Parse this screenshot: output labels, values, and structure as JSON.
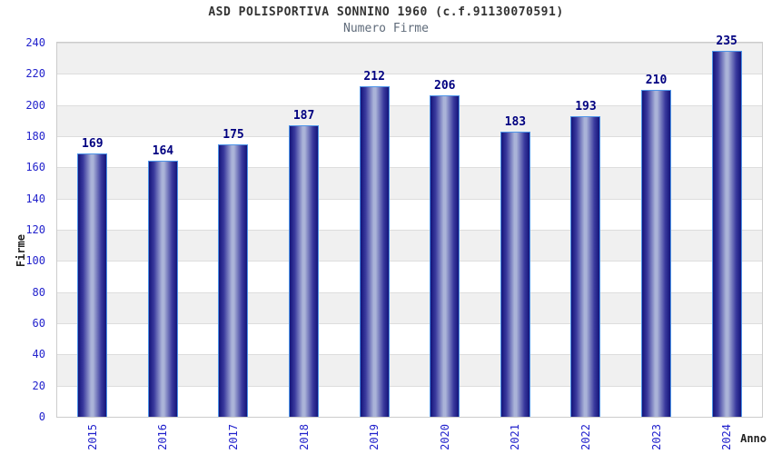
{
  "chart_data": {
    "type": "bar",
    "title": "ASD POLISPORTIVA SONNINO 1960 (c.f.91130070591)",
    "subtitle": "Numero Firme",
    "categories": [
      "2015",
      "2016",
      "2017",
      "2018",
      "2019",
      "2020",
      "2021",
      "2022",
      "2023",
      "2024"
    ],
    "values": [
      169,
      164,
      175,
      187,
      212,
      206,
      183,
      193,
      210,
      235
    ],
    "xlabel": "Anno",
    "ylabel": "Firme",
    "ylim": [
      0,
      240
    ],
    "ytick_step": 20,
    "grid": "alternating horizontal bands every 20 units",
    "legend": "none",
    "colors": {
      "bar_edge_dark": "#14147a",
      "bar_mid": "#3a3a9e",
      "bar_center_light": "#aab3d8",
      "bar_border": "#4d94e8",
      "tick_label": "#2222cc",
      "value_label": "#000080",
      "band_gray": "#f0f0f0",
      "band_white": "#ffffff",
      "gridline": "#dddddd",
      "plot_border": "#cccccc",
      "title": "#333333",
      "subtitle": "#5f6b7a",
      "axis_title": "#222222"
    }
  }
}
